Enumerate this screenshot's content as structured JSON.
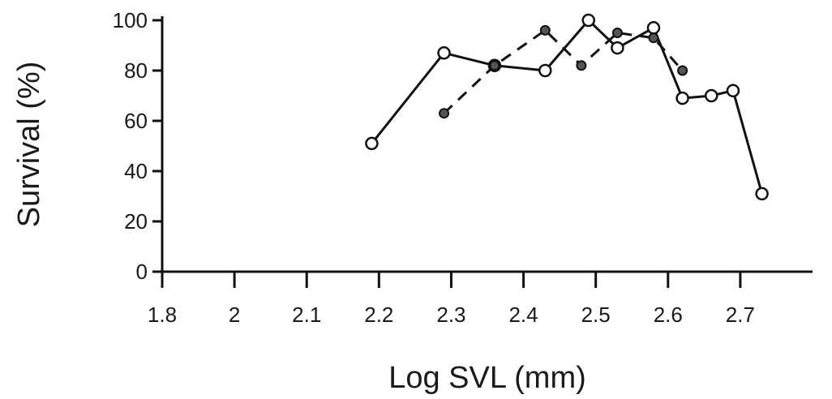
{
  "chart_data": {
    "type": "line",
    "xlabel": "Log SVL (mm)",
    "ylabel": "Survival (%)",
    "xlim": [
      1.8,
      2.7
    ],
    "ylim": [
      0,
      100
    ],
    "x_ticks": [
      "1.8",
      "2",
      "2.1",
      "2.2",
      "2.3",
      "2.4",
      "2.5",
      "2.6",
      "2.7"
    ],
    "y_ticks": [
      "0",
      "20",
      "40",
      "60",
      "80",
      "100"
    ],
    "grid": false,
    "series": [
      {
        "style": "solid",
        "marker": "open-circle",
        "color": "#111111",
        "x": [
          2.09,
          2.19,
          2.26,
          2.33,
          2.39,
          2.43,
          2.48,
          2.52,
          2.56,
          2.59,
          2.63
        ],
        "y": [
          51,
          87,
          82,
          80,
          100,
          89,
          97,
          69,
          70,
          72,
          31
        ]
      },
      {
        "style": "dashed",
        "marker": "filled-circle",
        "color": "#111111",
        "x": [
          2.19,
          2.26,
          2.33,
          2.38,
          2.43,
          2.48,
          2.52
        ],
        "y": [
          63,
          82,
          96,
          82,
          95,
          93,
          80
        ]
      }
    ]
  }
}
